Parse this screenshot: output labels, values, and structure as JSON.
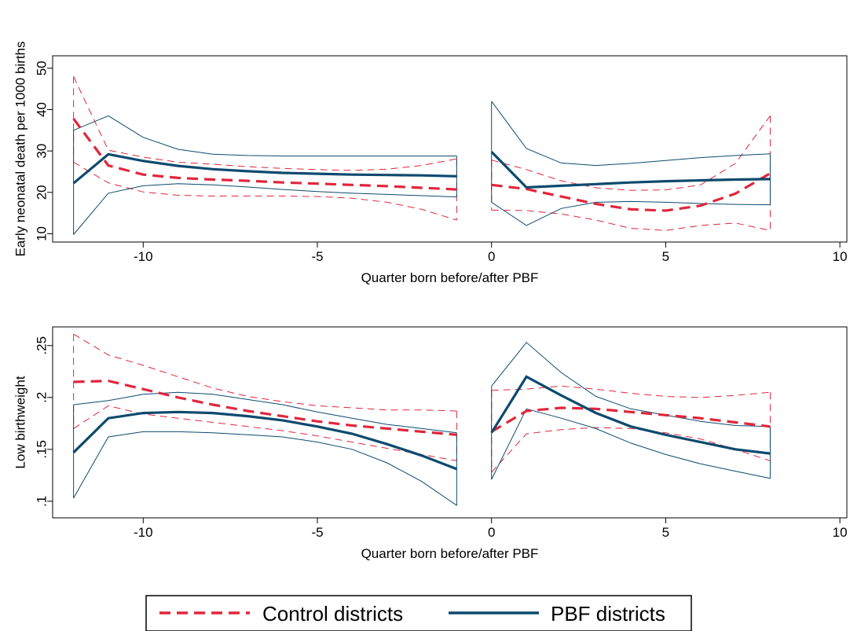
{
  "colors": {
    "control": "#e0263c",
    "pbf": "#0d4a6e"
  },
  "legend": {
    "control_label": "Control districts",
    "pbf_label": "PBF districts"
  },
  "chart_data": [
    {
      "type": "line",
      "xlabel": "Quarter born before/after PBF",
      "ylabel": "Early neonatal death per 1000 births",
      "xlim": [
        -12.6,
        10.2
      ],
      "ylim": [
        8,
        53
      ],
      "xticks": [
        -10,
        -5,
        0,
        5,
        10
      ],
      "yticks": [
        10,
        20,
        30,
        40,
        50
      ],
      "ytick_labels": [
        "10",
        "20",
        "30",
        "40",
        "50"
      ],
      "segments": [
        {
          "x": [
            -12,
            -11,
            -10,
            -9,
            -8,
            -7,
            -6,
            -5,
            -4,
            -3,
            -2,
            -1
          ],
          "control": {
            "est": [
              37.8,
              26.5,
              24.3,
              23.5,
              23.1,
              22.8,
              22.4,
              22.1,
              21.8,
              21.5,
              21.1,
              20.7
            ],
            "upper": [
              48,
              30.2,
              28.5,
              27.3,
              26.8,
              26.2,
              25.8,
              25.5,
              25.3,
              25.6,
              26.5,
              28.1
            ],
            "lower": [
              27.3,
              22.3,
              20.1,
              19.3,
              19.1,
              19.1,
              19.1,
              19.0,
              18.6,
              17.6,
              15.9,
              13.3
            ]
          },
          "pbf": {
            "est": [
              22.2,
              29.2,
              27.6,
              26.4,
              25.6,
              25.1,
              24.7,
              24.5,
              24.3,
              24.2,
              24.1,
              23.9
            ],
            "upper": [
              35,
              38.5,
              33.3,
              30.4,
              29.2,
              28.9,
              28.8,
              28.8,
              28.8,
              28.8,
              28.8,
              28.8
            ],
            "lower": [
              9.8,
              19.8,
              21.6,
              22.1,
              21.8,
              21.3,
              20.7,
              20.2,
              19.8,
              19.5,
              19.2,
              18.9
            ]
          }
        },
        {
          "x": [
            0,
            1,
            2,
            3,
            4,
            5,
            6,
            7,
            8
          ],
          "control": {
            "est": [
              21.8,
              20.8,
              19.0,
              17.2,
              15.9,
              15.6,
              16.8,
              19.7,
              24.6
            ],
            "upper": [
              27.8,
              25.5,
              22.8,
              21.1,
              20.5,
              20.6,
              21.8,
              27.0,
              38.5
            ],
            "lower": [
              15.7,
              15.6,
              14.8,
              13.3,
              11.3,
              10.8,
              12.0,
              12.6,
              10.8
            ]
          },
          "pbf": {
            "est": [
              29.8,
              21.2,
              21.6,
              22.0,
              22.4,
              22.7,
              22.9,
              23.1,
              23.2
            ],
            "upper": [
              42.0,
              30.6,
              27.1,
              26.5,
              27.0,
              27.7,
              28.4,
              28.9,
              29.3
            ],
            "lower": [
              17.6,
              12.0,
              16.1,
              17.6,
              17.8,
              17.6,
              17.3,
              17.1,
              17.0
            ]
          }
        }
      ]
    },
    {
      "type": "line",
      "xlabel": "Quarter born before/after PBF",
      "ylabel": "Low birthweight",
      "xlim": [
        -12.6,
        10.2
      ],
      "ylim": [
        0.084,
        0.268
      ],
      "xticks": [
        -10,
        -5,
        0,
        5,
        10
      ],
      "yticks": [
        0.1,
        0.15,
        0.2,
        0.25
      ],
      "ytick_labels": [
        ".1",
        ".15",
        ".2",
        ".25"
      ],
      "segments": [
        {
          "x": [
            -12,
            -11,
            -10,
            -9,
            -8,
            -7,
            -6,
            -5,
            -4,
            -3,
            -2,
            -1
          ],
          "control": {
            "est": [
              0.215,
              0.216,
              0.208,
              0.2,
              0.193,
              0.187,
              0.182,
              0.177,
              0.173,
              0.17,
              0.167,
              0.164
            ],
            "upper": [
              0.261,
              0.241,
              0.231,
              0.22,
              0.209,
              0.201,
              0.196,
              0.192,
              0.19,
              0.188,
              0.188,
              0.187
            ],
            "lower": [
              0.17,
              0.192,
              0.184,
              0.18,
              0.176,
              0.172,
              0.168,
              0.163,
              0.157,
              0.151,
              0.145,
              0.139
            ]
          },
          "pbf": {
            "est": [
              0.147,
              0.18,
              0.185,
              0.186,
              0.185,
              0.182,
              0.178,
              0.172,
              0.165,
              0.155,
              0.144,
              0.131
            ],
            "upper": [
              0.193,
              0.197,
              0.203,
              0.205,
              0.203,
              0.198,
              0.193,
              0.186,
              0.18,
              0.174,
              0.17,
              0.166
            ],
            "lower": [
              0.103,
              0.162,
              0.167,
              0.167,
              0.166,
              0.164,
              0.162,
              0.157,
              0.15,
              0.137,
              0.119,
              0.096
            ]
          }
        },
        {
          "x": [
            0,
            1,
            2,
            3,
            4,
            5,
            6,
            7,
            8
          ],
          "control": {
            "est": [
              0.167,
              0.187,
              0.19,
              0.189,
              0.186,
              0.183,
              0.18,
              0.176,
              0.172
            ],
            "upper": [
              0.207,
              0.208,
              0.211,
              0.208,
              0.204,
              0.201,
              0.2,
              0.202,
              0.205
            ],
            "lower": [
              0.128,
              0.165,
              0.169,
              0.171,
              0.17,
              0.166,
              0.16,
              0.15,
              0.139
            ]
          },
          "pbf": {
            "est": [
              0.166,
              0.22,
              0.202,
              0.185,
              0.172,
              0.164,
              0.157,
              0.15,
              0.146
            ],
            "upper": [
              0.211,
              0.253,
              0.224,
              0.201,
              0.189,
              0.183,
              0.177,
              0.173,
              0.172
            ],
            "lower": [
              0.121,
              0.189,
              0.18,
              0.17,
              0.156,
              0.145,
              0.136,
              0.129,
              0.122
            ]
          }
        }
      ]
    }
  ]
}
